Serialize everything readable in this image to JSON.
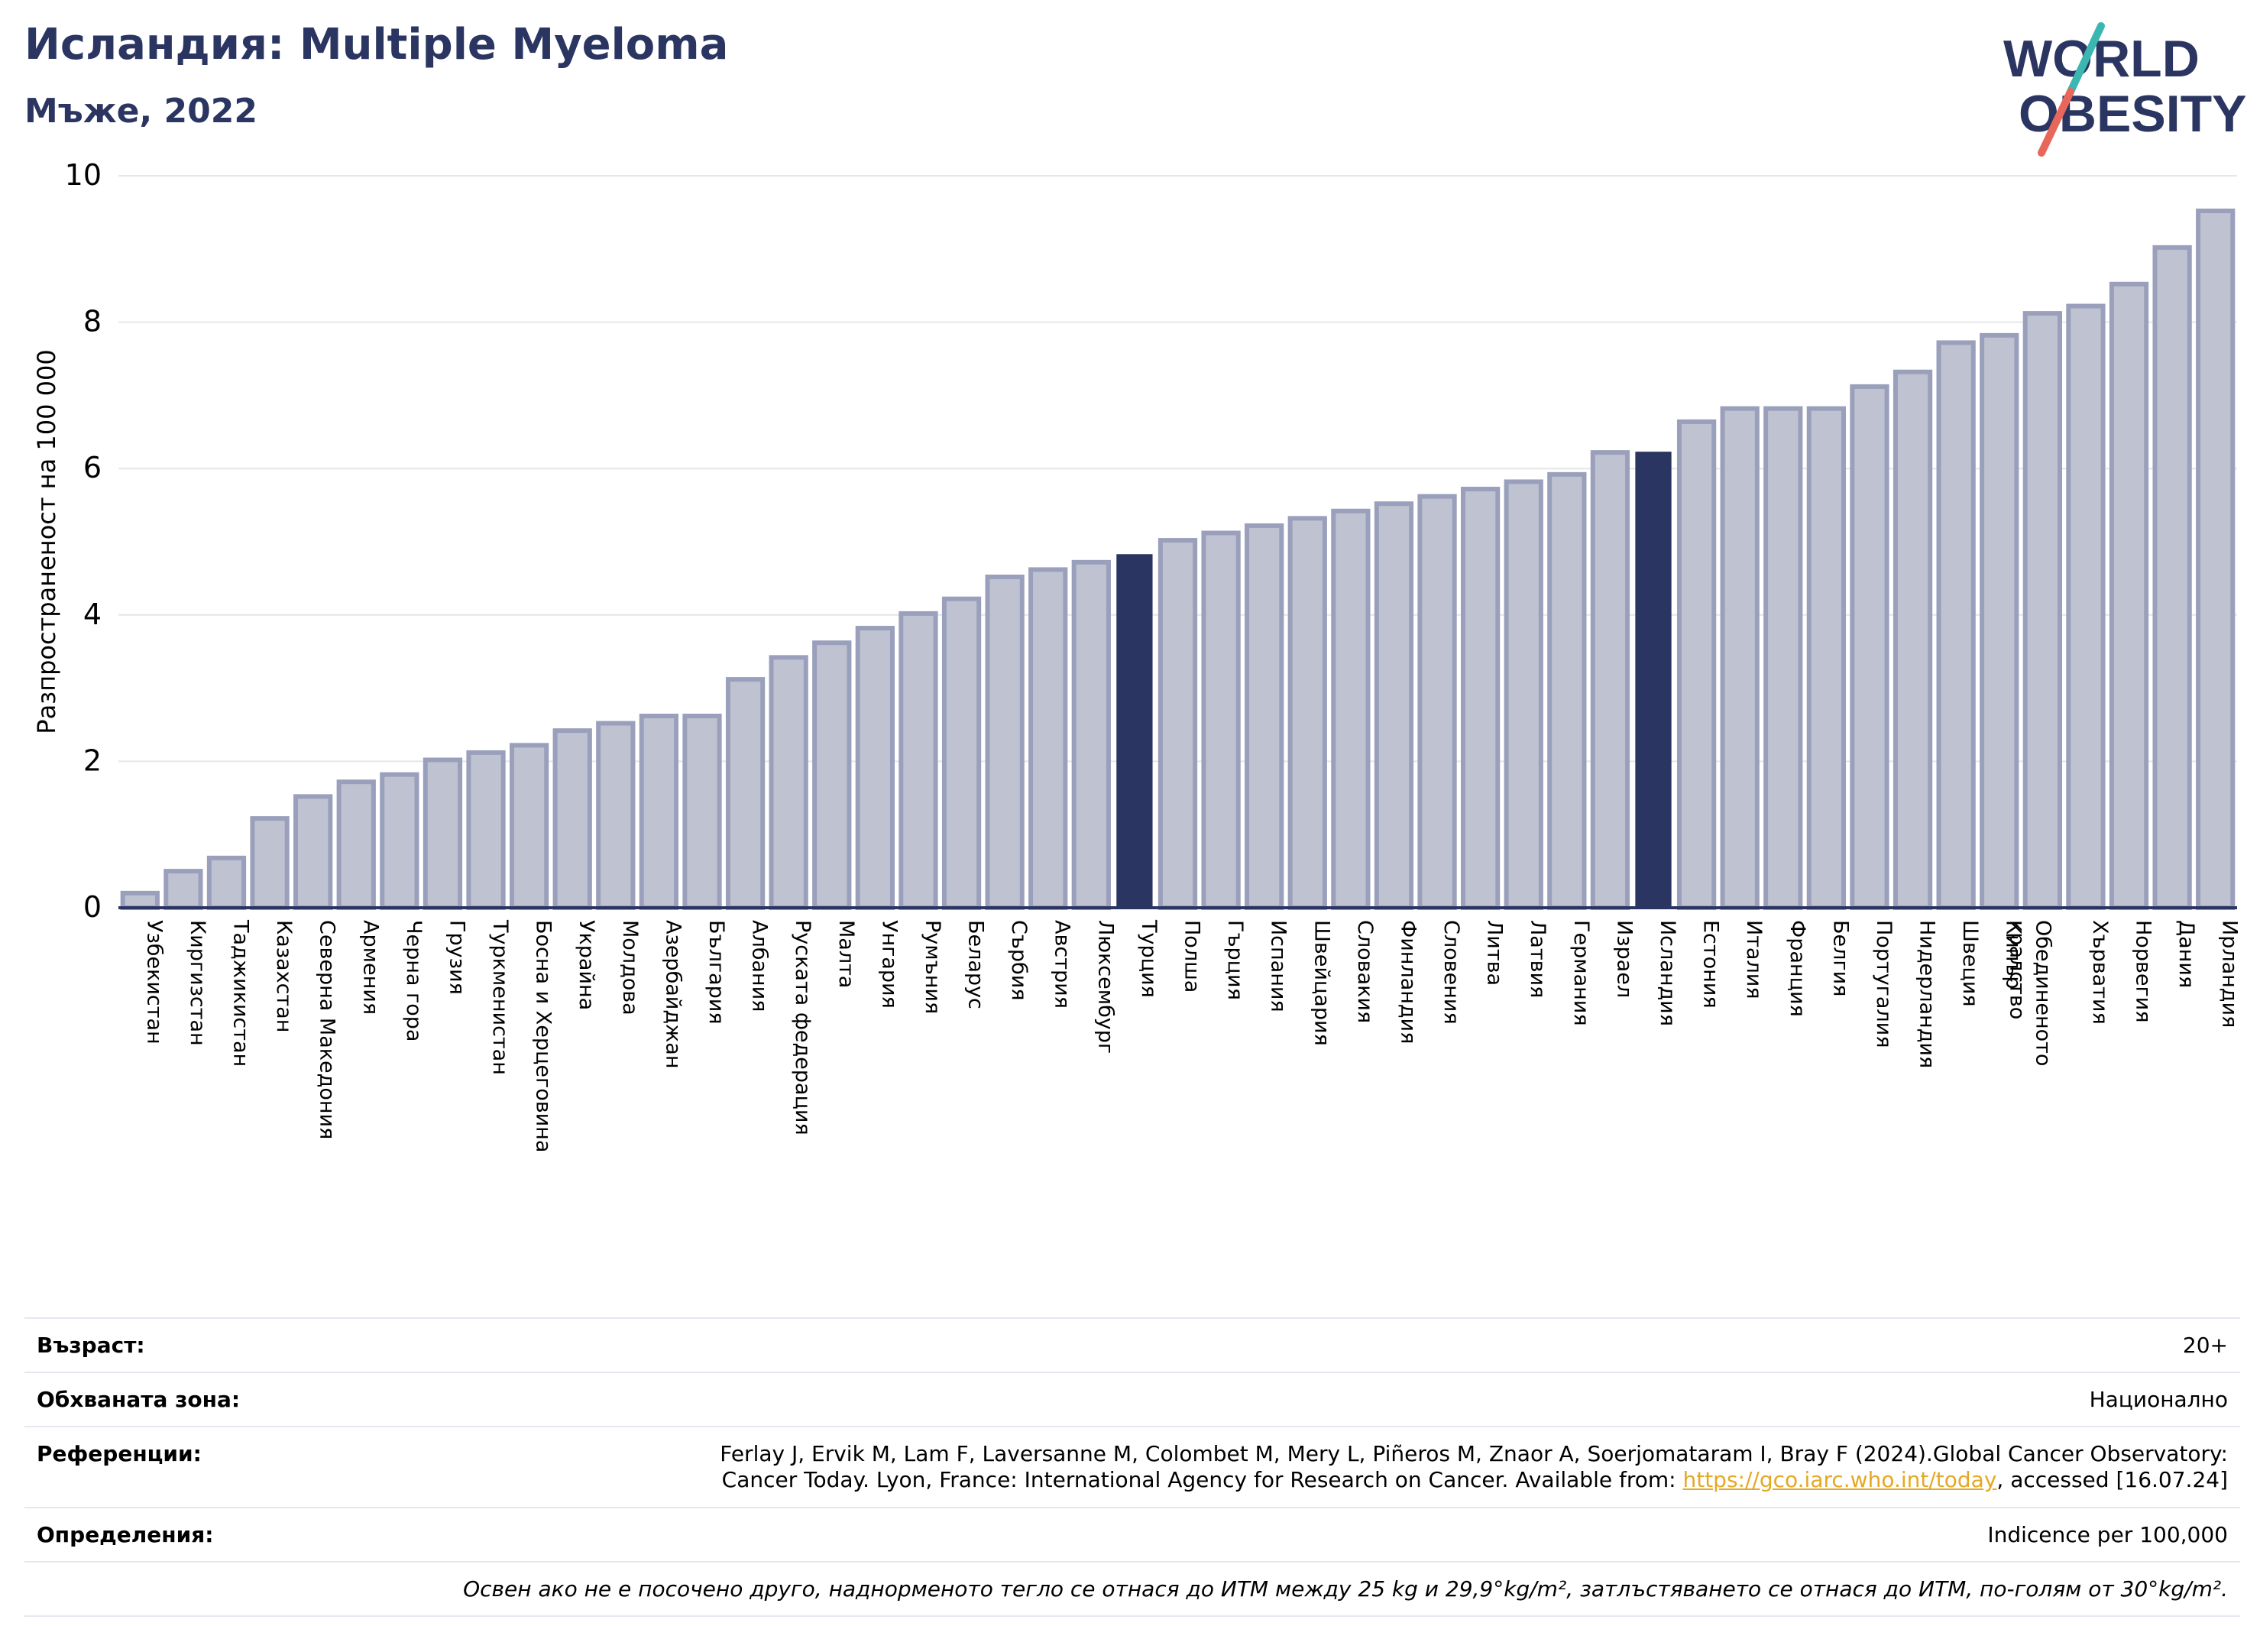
{
  "title": "Исландия: Multiple Myeloma",
  "subtitle": "Мъже, 2022",
  "logo": {
    "line1": "WORLD",
    "line2": "OBESITY",
    "text_color": "#2b3561",
    "slash_colors": [
      "#3bb6b0",
      "#e8675a"
    ]
  },
  "chart_data": {
    "type": "bar",
    "ylabel": "Разпространеност  на 100 000",
    "xlabel": "",
    "ylim": [
      0,
      10
    ],
    "yticks": [
      0,
      2,
      4,
      6,
      8,
      10
    ],
    "grid": true,
    "bar_color": "#bfc2d0",
    "bar_edge_color": "#9aa0bb",
    "highlight_color": "#2b3561",
    "highlight": [
      "Турция",
      "Исландия"
    ],
    "categories": [
      "Узбекистан",
      "Киргизстан",
      "Таджикистан",
      "Казахстан",
      "Северна Македония",
      "Армения",
      "Черна гора",
      "Грузия",
      "Туркменистан",
      "Босна и Херцеговина",
      "Украйна",
      "Молдова",
      "Азербайджан",
      "България",
      "Албания",
      "Руската федерация",
      "Малта",
      "Унгария",
      "Румъния",
      "Беларус",
      "Сърбия",
      "Австрия",
      "Люксембург",
      "Турция",
      "Полша",
      "Гърция",
      "Испания",
      "Швейцария",
      "Словакия",
      "Финландия",
      "Словения",
      "Литва",
      "Латвия",
      "Германия",
      "Израел",
      "Исландия",
      "Естония",
      "Италия",
      "Франция",
      "Белгия",
      "Португалия",
      "Нидерландия",
      "Швеция",
      "Кипър",
      "Обединеното кралство",
      "Хърватия",
      "Норвегия",
      "Дания",
      "Ирландия"
    ],
    "values": [
      0.2,
      0.5,
      0.68,
      1.22,
      1.52,
      1.72,
      1.82,
      2.02,
      2.12,
      2.22,
      2.42,
      2.52,
      2.62,
      2.62,
      3.12,
      3.42,
      3.62,
      3.82,
      4.02,
      4.22,
      4.52,
      4.62,
      4.72,
      4.82,
      5.02,
      5.12,
      5.22,
      5.32,
      5.42,
      5.52,
      5.62,
      5.72,
      5.82,
      5.92,
      6.22,
      6.22,
      6.64,
      6.82,
      6.82,
      6.82,
      7.12,
      7.32,
      7.72,
      7.82,
      8.12,
      8.22,
      8.52,
      9.02,
      9.52
    ]
  },
  "info": {
    "age_label": "Възраст:",
    "age_value": "20+",
    "area_label": "Обхваната зона:",
    "area_value": "Национално",
    "ref_label": "Референции:",
    "ref_text_1": "Ferlay J, Ervik M, Lam F, Laversanne M, Colombet M, Mery L, Piñeros M, Znaor A, Soerjomataram I, Bray F (2024).Global Cancer Observatory:",
    "ref_text_2": "Cancer Today. Lyon, France: International Agency for Research on Cancer. Available from: ",
    "ref_link": "https://gco.iarc.who.int/today",
    "ref_text_3": ", accessed [16.07.24]",
    "def_label": "Определения:",
    "def_value": "Indicence per 100,000",
    "note": "Освен ако не е посочено друго, наднорменото тегло се отнася до ИТМ между 25 kg и 29,9°kg/m², затлъстяването се отнася до ИТМ, по-голям от 30°kg/m²."
  }
}
